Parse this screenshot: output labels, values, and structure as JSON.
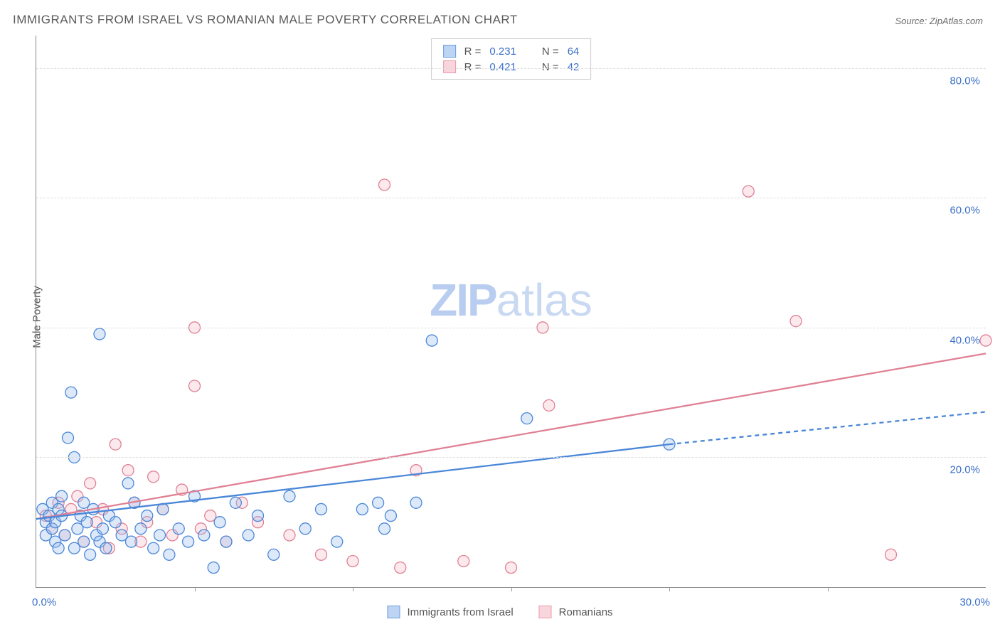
{
  "title": "IMMIGRANTS FROM ISRAEL VS ROMANIAN MALE POVERTY CORRELATION CHART",
  "source": "Source: ZipAtlas.com",
  "ylabel": "Male Poverty",
  "watermark": {
    "bold": "ZIP",
    "light": "atlas"
  },
  "chart": {
    "type": "scatter-with-regression",
    "xlim": [
      0,
      30
    ],
    "ylim": [
      0,
      85
    ],
    "x_tick_labels": {
      "0": "0.0%",
      "30": "30.0%"
    },
    "x_minor_ticks": [
      5,
      10,
      15,
      20,
      25
    ],
    "y_gridlines": [
      20,
      40,
      60,
      80
    ],
    "y_tick_labels": {
      "20": "20.0%",
      "40": "40.0%",
      "60": "60.0%",
      "80": "80.0%"
    },
    "background_color": "#ffffff",
    "grid_color": "#dddddd",
    "grid_dash": true,
    "axis_color": "#888888",
    "tick_label_color": "#3b6fc9",
    "tick_label_fontsize": 15,
    "marker_radius": 8,
    "marker_fill_opacity": 0.35,
    "marker_stroke_width": 1.3,
    "trend_line_width": 2.3
  },
  "series": {
    "israel": {
      "label": "Immigrants from Israel",
      "fill": "#9dc0ee",
      "stroke": "#4a87d8",
      "swatch_fill": "#bdd4f2",
      "swatch_border": "#6a9fe0",
      "R": "0.231",
      "N": "64",
      "trend": {
        "x1": 0,
        "y1": 10.5,
        "x2": 20,
        "y2": 22,
        "dash_x1": 20,
        "dash_y1": 22,
        "dash_x2": 30,
        "dash_y2": 27
      },
      "points": [
        [
          0.2,
          12
        ],
        [
          0.3,
          10
        ],
        [
          0.3,
          8
        ],
        [
          0.4,
          11
        ],
        [
          0.5,
          9
        ],
        [
          0.5,
          13
        ],
        [
          0.6,
          7
        ],
        [
          0.6,
          10
        ],
        [
          0.7,
          12
        ],
        [
          0.7,
          6
        ],
        [
          0.8,
          11
        ],
        [
          0.8,
          14
        ],
        [
          0.9,
          8
        ],
        [
          1.0,
          23
        ],
        [
          1.1,
          30
        ],
        [
          1.2,
          20
        ],
        [
          1.2,
          6
        ],
        [
          1.3,
          9
        ],
        [
          1.4,
          11
        ],
        [
          1.5,
          7
        ],
        [
          1.5,
          13
        ],
        [
          1.6,
          10
        ],
        [
          1.7,
          5
        ],
        [
          1.8,
          12
        ],
        [
          1.9,
          8
        ],
        [
          2.0,
          39
        ],
        [
          2.0,
          7
        ],
        [
          2.1,
          9
        ],
        [
          2.2,
          6
        ],
        [
          2.3,
          11
        ],
        [
          2.5,
          10
        ],
        [
          2.7,
          8
        ],
        [
          2.9,
          16
        ],
        [
          3.0,
          7
        ],
        [
          3.1,
          13
        ],
        [
          3.3,
          9
        ],
        [
          3.5,
          11
        ],
        [
          3.7,
          6
        ],
        [
          3.9,
          8
        ],
        [
          4.0,
          12
        ],
        [
          4.2,
          5
        ],
        [
          4.5,
          9
        ],
        [
          4.8,
          7
        ],
        [
          5.0,
          14
        ],
        [
          5.3,
          8
        ],
        [
          5.6,
          3
        ],
        [
          5.8,
          10
        ],
        [
          6.0,
          7
        ],
        [
          6.3,
          13
        ],
        [
          6.7,
          8
        ],
        [
          7.0,
          11
        ],
        [
          7.5,
          5
        ],
        [
          8.0,
          14
        ],
        [
          8.5,
          9
        ],
        [
          9.0,
          12
        ],
        [
          9.5,
          7
        ],
        [
          10.3,
          12
        ],
        [
          10.8,
          13
        ],
        [
          11.2,
          11
        ],
        [
          11.0,
          9
        ],
        [
          12.0,
          13
        ],
        [
          12.5,
          38
        ],
        [
          15.5,
          26
        ],
        [
          20.0,
          22
        ]
      ]
    },
    "romanian": {
      "label": "Romanians",
      "fill": "#f5c0cb",
      "stroke": "#e08095",
      "swatch_fill": "#f9d6de",
      "swatch_border": "#e89aaa",
      "R": "0.421",
      "N": "42",
      "trend": {
        "x1": 0,
        "y1": 10.5,
        "x2": 30,
        "y2": 36
      },
      "points": [
        [
          0.3,
          11
        ],
        [
          0.5,
          9
        ],
        [
          0.7,
          13
        ],
        [
          0.9,
          8
        ],
        [
          1.1,
          12
        ],
        [
          1.3,
          14
        ],
        [
          1.5,
          7
        ],
        [
          1.7,
          16
        ],
        [
          1.9,
          10
        ],
        [
          2.1,
          12
        ],
        [
          2.3,
          6
        ],
        [
          2.5,
          22
        ],
        [
          2.7,
          9
        ],
        [
          2.9,
          18
        ],
        [
          3.1,
          13
        ],
        [
          3.3,
          7
        ],
        [
          3.5,
          10
        ],
        [
          3.7,
          17
        ],
        [
          4.0,
          12
        ],
        [
          4.3,
          8
        ],
        [
          4.6,
          15
        ],
        [
          5.0,
          40
        ],
        [
          5.0,
          31
        ],
        [
          5.2,
          9
        ],
        [
          5.5,
          11
        ],
        [
          6.0,
          7
        ],
        [
          6.5,
          13
        ],
        [
          7.0,
          10
        ],
        [
          8.0,
          8
        ],
        [
          9.0,
          5
        ],
        [
          10.0,
          4
        ],
        [
          11.0,
          62
        ],
        [
          11.5,
          3
        ],
        [
          12.0,
          18
        ],
        [
          13.5,
          4
        ],
        [
          15.0,
          3
        ],
        [
          16.0,
          40
        ],
        [
          16.2,
          28
        ],
        [
          22.5,
          61
        ],
        [
          24.0,
          41
        ],
        [
          27.0,
          5
        ],
        [
          30.0,
          38
        ]
      ]
    }
  },
  "legend_top_labels": {
    "R": "R =",
    "N": "N ="
  },
  "legend_bottom_order": [
    "israel",
    "romanian"
  ]
}
